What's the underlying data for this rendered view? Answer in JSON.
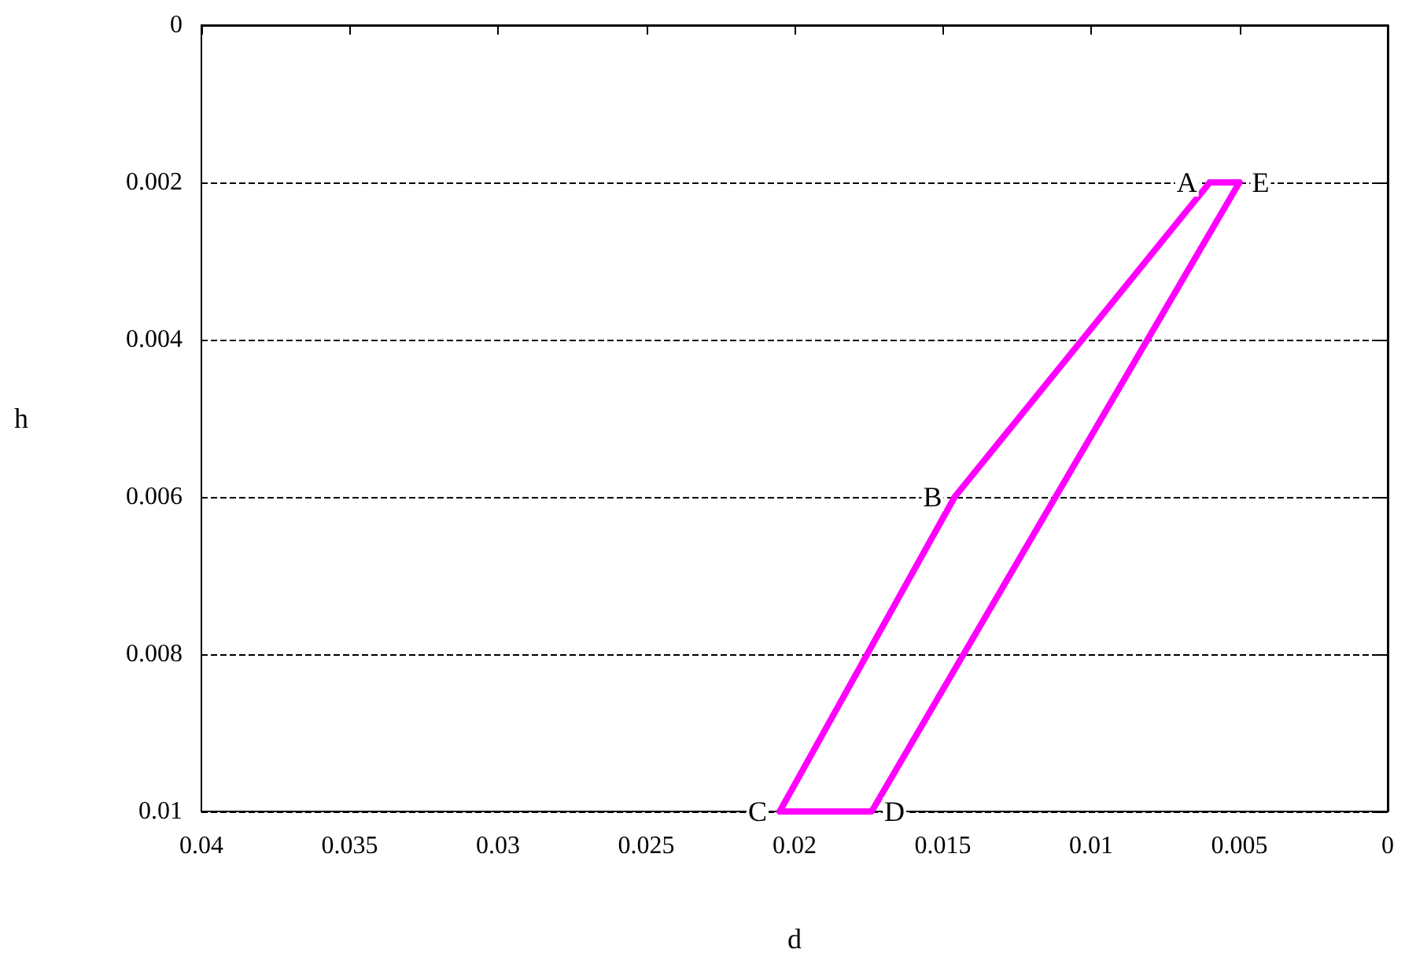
{
  "chart_data": {
    "type": "line",
    "xlabel": "d",
    "ylabel": "h",
    "series": [
      {
        "color": "#ff00ff",
        "x": [
          0.006,
          0.0146,
          0.0205
        ],
        "values": [
          0.002,
          0.006,
          0.01
        ]
      },
      {
        "color": "#ff00ff",
        "x": [
          0.0205,
          0.0174,
          0.005
        ],
        "values": [
          0.01,
          0.01,
          0.002
        ]
      },
      {
        "color": "#ff00ff",
        "x": [
          0.005,
          0.006
        ],
        "values": [
          0.002,
          0.002
        ]
      }
    ],
    "xlim": [
      0.04,
      0
    ],
    "ylim": [
      0.01,
      0
    ],
    "xticks": [
      0.04,
      0.035,
      0.03,
      0.025,
      0.02,
      0.015,
      0.01,
      0.005,
      0
    ],
    "yticks": [
      0.01,
      0.008,
      0.006,
      0.004,
      0.002,
      0
    ],
    "grid": "y",
    "marker": "none",
    "line_style": "solid",
    "annotations": [
      {
        "text": "A",
        "x": 0.006,
        "y": 0.002
      },
      {
        "text": "B",
        "x": 0.0146,
        "y": 0.006
      },
      {
        "text": "C",
        "x": 0.0205,
        "y": 0.01
      },
      {
        "text": "D",
        "x": 0.0174,
        "y": 0.01
      },
      {
        "text": "E",
        "x": 0.005,
        "y": 0.002
      }
    ]
  }
}
